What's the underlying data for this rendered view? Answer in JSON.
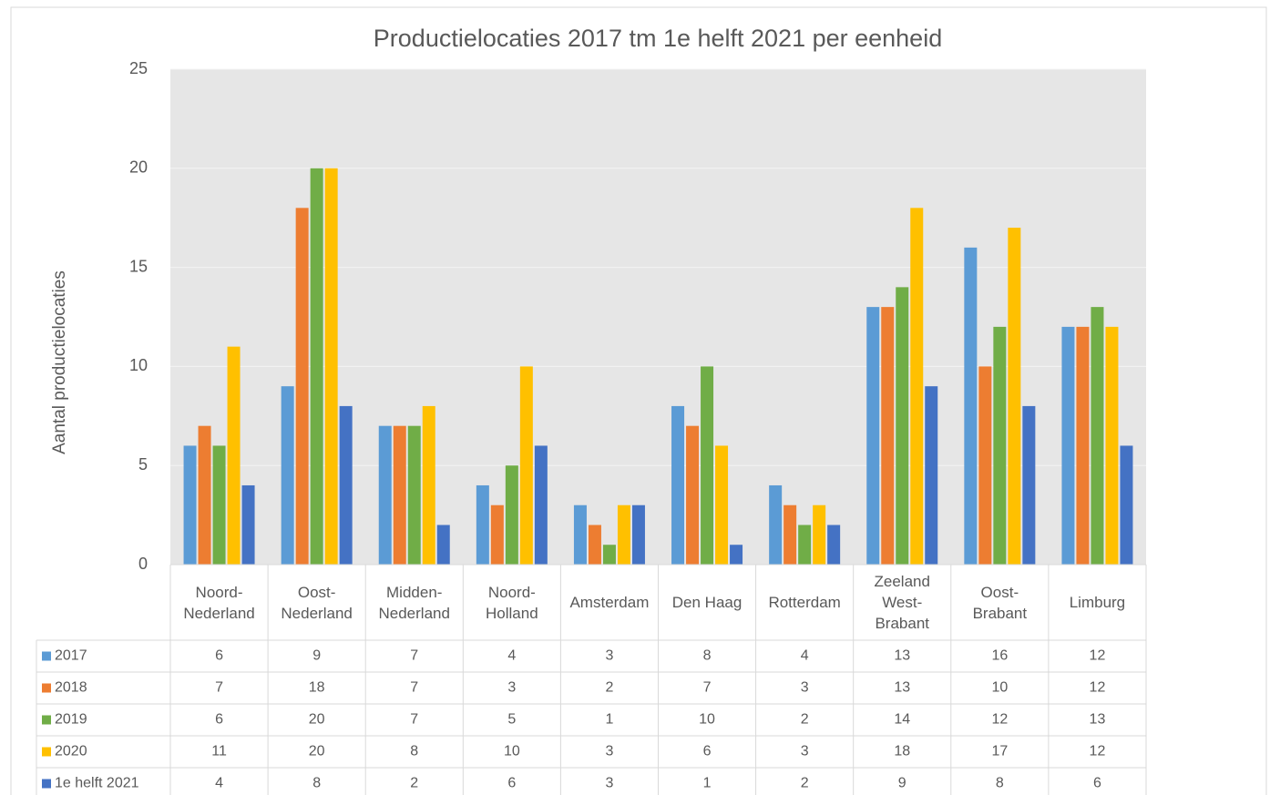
{
  "chart_data": {
    "type": "bar",
    "title": "Productielocaties 2017 tm 1e helft 2021 per eenheid",
    "y_label": "Aantal productielocaties",
    "categories": [
      "Noord-\nNederland",
      "Oost-\nNederland",
      "Midden-\nNederland",
      "Noord-\nHolland",
      "Amsterdam",
      "Den Haag",
      "Rotterdam",
      "Zeeland\nWest-\nBrabant",
      "Oost-\nBrabant",
      "Limburg"
    ],
    "series": [
      {
        "name": "2017",
        "color": "#5b9bd5",
        "values": [
          6,
          9,
          7,
          4,
          3,
          8,
          4,
          13,
          16,
          12
        ]
      },
      {
        "name": "2018",
        "color": "#ed7d31",
        "values": [
          7,
          18,
          7,
          3,
          2,
          7,
          3,
          13,
          10,
          12
        ]
      },
      {
        "name": "2019",
        "color": "#70ad47",
        "values": [
          6,
          20,
          7,
          5,
          1,
          10,
          2,
          14,
          12,
          13
        ]
      },
      {
        "name": "2020",
        "color": "#ffc000",
        "values": [
          11,
          20,
          8,
          10,
          3,
          6,
          3,
          18,
          17,
          12
        ]
      },
      {
        "name": "1e helft 2021",
        "color": "#4472c4",
        "values": [
          4,
          8,
          2,
          6,
          3,
          1,
          2,
          9,
          8,
          6
        ]
      }
    ],
    "ylim": [
      0,
      25
    ],
    "yticks": [
      0,
      5,
      10,
      15,
      20,
      25
    ],
    "grid": true,
    "data_table": true
  }
}
